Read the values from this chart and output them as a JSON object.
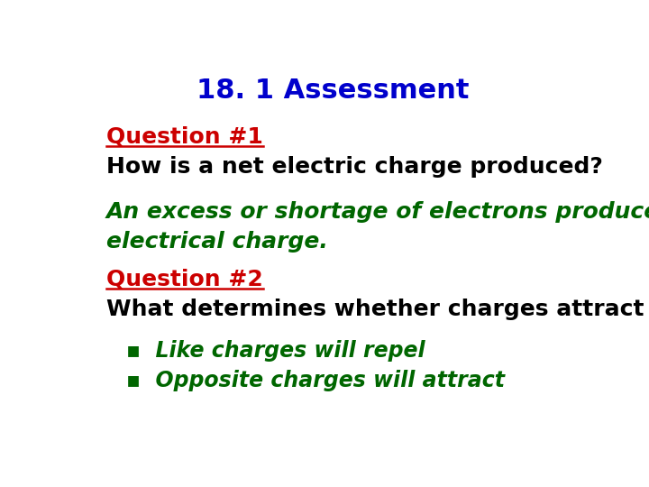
{
  "title": "18. 1 Assessment",
  "title_color": "#0000CC",
  "title_fontsize": 22,
  "background_color": "#ffffff",
  "q1_label": "Question #1",
  "q1_label_color": "#CC0000",
  "q1_label_fontsize": 18,
  "q1_text": "How is a net electric charge produced?",
  "q1_text_color": "#000000",
  "q1_text_fontsize": 18,
  "answer1_line1": "An excess or shortage of electrons produces a net",
  "answer1_line2": "electrical charge.",
  "answer1_color": "#006600",
  "answer1_fontsize": 18,
  "q2_label": "Question #2",
  "q2_label_color": "#CC0000",
  "q2_label_fontsize": 18,
  "q2_text": "What determines whether charges attract or repel?",
  "q2_text_color": "#000000",
  "q2_text_fontsize": 18,
  "bullet1": "Like charges will repel",
  "bullet2": "Opposite charges will attract",
  "bullet_color": "#006600",
  "bullet_fontsize": 17,
  "bullet_symbol": "▪"
}
